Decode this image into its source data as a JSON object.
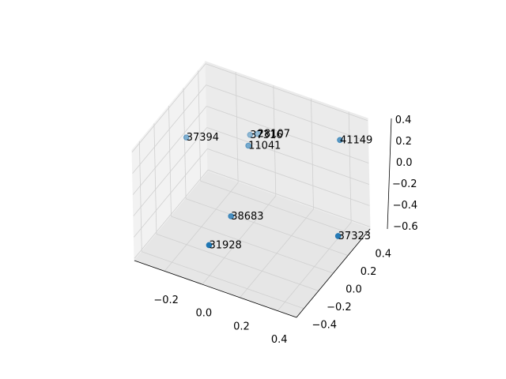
{
  "chart_data": {
    "type": "scatter3d",
    "labels": [
      "37394",
      "37316",
      "28107",
      "11041",
      "41149",
      "38683",
      "31928",
      "37323"
    ],
    "x": [
      -0.31,
      -0.05,
      -0.03,
      -0.02,
      0.43,
      -0.04,
      -0.08,
      0.49
    ],
    "y": [
      0.1,
      0.3,
      0.35,
      0.2,
      0.3,
      0.0,
      -0.2,
      0.1
    ],
    "z": [
      0.07,
      0.09,
      0.07,
      0.09,
      0.34,
      -0.42,
      -0.55,
      -0.36
    ],
    "color": "#1f77b4",
    "depthshade": true,
    "grid": true,
    "xlim": [
      -0.36,
      0.5
    ],
    "ylim": [
      -0.5,
      0.5
    ],
    "zlim": [
      -0.62,
      0.42
    ],
    "xticks": [
      {
        "value": -0.2,
        "label": "−0.2"
      },
      {
        "value": 0,
        "label": "0.0"
      },
      0.2,
      0.4
    ],
    "yticks": [
      {
        "value": -0.4,
        "label": "−0.4"
      },
      {
        "value": -0.2,
        "label": "−0.2"
      },
      {
        "value": 0,
        "label": "0.0"
      },
      0.2,
      0.4
    ],
    "zticks": [
      {
        "value": -0.6,
        "label": "−0.6"
      },
      {
        "value": -0.4,
        "label": "−0.4"
      },
      {
        "value": -0.2,
        "label": "−0.2"
      },
      {
        "value": 0,
        "label": "0.0"
      },
      0.2,
      0.4
    ]
  }
}
